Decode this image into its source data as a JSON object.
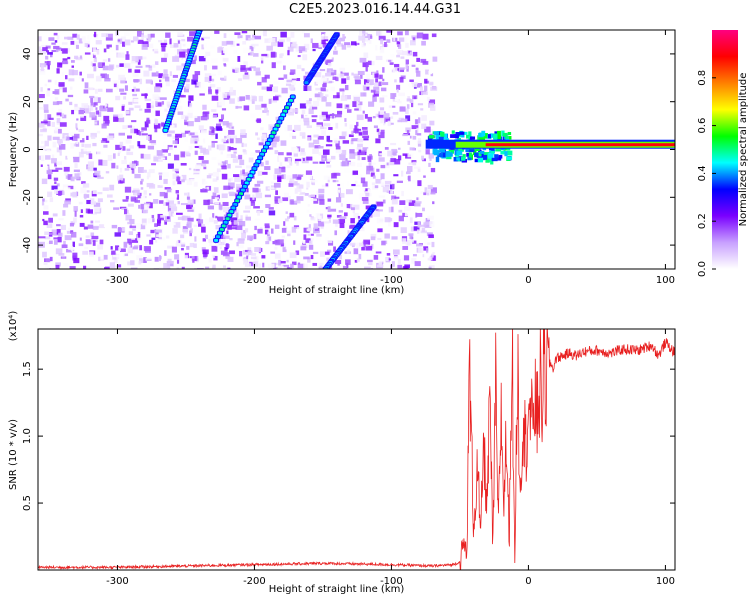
{
  "title": "C2E5.2023.016.14.44.G31",
  "chart_data": [
    {
      "type": "heatmap",
      "xlabel": "Height of straight line (km)",
      "ylabel": "Frequency (Hz)",
      "xlim": [
        -358,
        107
      ],
      "ylim": [
        -50,
        50
      ],
      "xticks": [
        -300,
        -200,
        -100,
        0,
        100
      ],
      "yticks": [
        -40,
        -20,
        0,
        20,
        40
      ],
      "colorbar": {
        "label": "Normalized spectral amplitude",
        "range": [
          0,
          1
        ],
        "ticks": [
          "0.0",
          "0.2",
          "0.4",
          "0.6",
          "0.8"
        ],
        "colors": [
          "#ffffff",
          "#c8a0ff",
          "#7a00ff",
          "#0000ff",
          "#00ffff",
          "#00ff00",
          "#ffff00",
          "#ff8000",
          "#ff0000",
          "#ff0080"
        ]
      },
      "features": {
        "scatter_region_x": [
          -358,
          -70
        ],
        "steady_line_frequency": 2,
        "steady_line_x": [
          -75,
          107
        ],
        "tracks": [
          {
            "x": [
              -240,
              -265
            ],
            "y": [
              50,
              8
            ],
            "intensity": 0.4
          },
          {
            "x": [
              -172,
              -228
            ],
            "y": [
              22,
              -38
            ],
            "intensity": 0.4
          },
          {
            "x": [
              -140,
              -162
            ],
            "y": [
              48,
              28
            ],
            "intensity": 0.35
          },
          {
            "x": [
              -113,
              -148
            ],
            "y": [
              -24,
              -50
            ],
            "intensity": 0.35
          }
        ]
      }
    },
    {
      "type": "line",
      "xlabel": "Height of straight line (km)",
      "ylabel": "SNR (10 * v/v)",
      "multiplier": "(x10⁴)",
      "xlim": [
        -358,
        107
      ],
      "ylim": [
        0,
        1.8
      ],
      "xticks": [
        -300,
        -200,
        -100,
        0,
        100
      ],
      "yticks": [
        0.5,
        1.0,
        1.5
      ],
      "color": "#e82020",
      "x": [
        -358,
        -300,
        -250,
        -200,
        -150,
        -100,
        -70,
        -55,
        -50,
        -47,
        -45,
        -43,
        -40,
        -37,
        -35,
        -33,
        -30,
        -28,
        -26,
        -24,
        -22,
        -20,
        -18,
        -16,
        -14,
        -12,
        -10,
        -8,
        -6,
        -4,
        -2,
        0,
        2,
        4,
        6,
        8,
        10,
        12,
        14,
        16,
        18,
        20,
        25,
        30,
        35,
        40,
        50,
        60,
        70,
        80,
        90,
        95,
        100,
        107
      ],
      "y": [
        0.02,
        0.02,
        0.03,
        0.04,
        0.05,
        0.04,
        0.03,
        0.04,
        0.06,
        0.2,
        0.1,
        1.5,
        0.3,
        0.8,
        0.2,
        0.9,
        0.5,
        1.3,
        0.1,
        1.4,
        0.3,
        1.2,
        0.5,
        1.0,
        0.2,
        1.8,
        0.01,
        1.6,
        0.6,
        1.2,
        0.9,
        1.3,
        1.0,
        1.35,
        1.1,
        1.4,
        1.3,
        1.5,
        1.45,
        1.55,
        1.5,
        1.58,
        1.6,
        1.62,
        1.6,
        1.63,
        1.64,
        1.62,
        1.65,
        1.64,
        1.68,
        1.6,
        1.7,
        1.62
      ]
    }
  ]
}
